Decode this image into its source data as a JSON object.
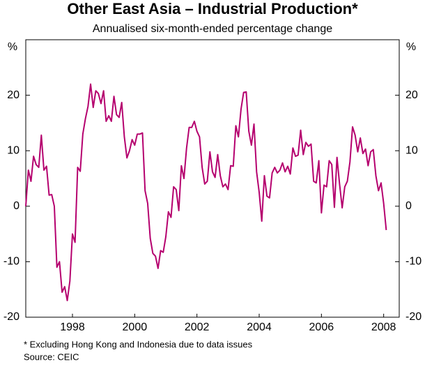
{
  "chart_data": {
    "type": "line",
    "title": "Other East Asia – Industrial Production*",
    "subtitle": "Annualised six-month-ended percentage change",
    "y_label": "%",
    "notes": [
      "*    Excluding Hong Kong and Indonesia due to data issues",
      "Source: CEIC"
    ],
    "xlim": [
      1997,
      2009
    ],
    "xticks": [
      {
        "value": 1998.5,
        "label": "1998"
      },
      {
        "value": 2000.5,
        "label": "2000"
      },
      {
        "value": 2002.5,
        "label": "2002"
      },
      {
        "value": 2004.5,
        "label": "2004"
      },
      {
        "value": 2006.5,
        "label": "2006"
      },
      {
        "value": 2008.5,
        "label": "2008"
      }
    ],
    "ylim": [
      -20,
      30
    ],
    "yticks": [
      -20,
      -10,
      0,
      10,
      20
    ],
    "grid": false,
    "x": [
      1997,
      1997.083,
      1997.167,
      1997.25,
      1997.333,
      1997.417,
      1997.5,
      1997.583,
      1997.667,
      1997.75,
      1997.833,
      1997.917,
      1998,
      1998.083,
      1998.167,
      1998.25,
      1998.333,
      1998.417,
      1998.5,
      1998.583,
      1998.667,
      1998.75,
      1998.833,
      1998.917,
      1999,
      1999.083,
      1999.167,
      1999.25,
      1999.333,
      1999.417,
      1999.5,
      1999.583,
      1999.667,
      1999.75,
      1999.833,
      1999.917,
      2000,
      2000.083,
      2000.167,
      2000.25,
      2000.333,
      2000.417,
      2000.5,
      2000.583,
      2000.667,
      2000.75,
      2000.833,
      2000.917,
      2001,
      2001.083,
      2001.167,
      2001.25,
      2001.333,
      2001.417,
      2001.5,
      2001.583,
      2001.667,
      2001.75,
      2001.833,
      2001.917,
      2002,
      2002.083,
      2002.167,
      2002.25,
      2002.333,
      2002.417,
      2002.5,
      2002.583,
      2002.667,
      2002.75,
      2002.833,
      2002.917,
      2003,
      2003.083,
      2003.167,
      2003.25,
      2003.333,
      2003.417,
      2003.5,
      2003.583,
      2003.667,
      2003.75,
      2003.833,
      2003.917,
      2004,
      2004.083,
      2004.167,
      2004.25,
      2004.333,
      2004.417,
      2004.5,
      2004.583,
      2004.667,
      2004.75,
      2004.833,
      2004.917,
      2005,
      2005.083,
      2005.167,
      2005.25,
      2005.333,
      2005.417,
      2005.5,
      2005.583,
      2005.667,
      2005.75,
      2005.833,
      2005.917,
      2006,
      2006.083,
      2006.167,
      2006.25,
      2006.333,
      2006.417,
      2006.5,
      2006.583,
      2006.667,
      2006.75,
      2006.833,
      2006.917,
      2007,
      2007.083,
      2007.167,
      2007.25,
      2007.333,
      2007.417,
      2007.5,
      2007.583,
      2007.667,
      2007.75,
      2007.833,
      2007.917,
      2008,
      2008.083,
      2008.167,
      2008.25,
      2008.333,
      2008.417,
      2008.5,
      2008.583
    ],
    "series": [
      {
        "name": "Industrial production",
        "color": "#b5006e",
        "values": [
          0,
          6.5,
          4.5,
          9,
          7.5,
          7,
          12.8,
          6.5,
          7.2,
          2,
          2.1,
          0,
          -11,
          -10,
          -15.5,
          -14.5,
          -17,
          -13.5,
          -5,
          -6.5,
          7,
          6.3,
          13,
          15.8,
          18,
          22,
          17.8,
          20.8,
          20.3,
          18.5,
          20.8,
          15.3,
          16.3,
          15.3,
          19.8,
          16.5,
          16,
          18.7,
          12.5,
          8.7,
          10,
          12,
          11,
          13,
          13,
          13.2,
          2.8,
          0.5,
          -5.8,
          -8.5,
          -9,
          -11.2,
          -8,
          -8.3,
          -5.5,
          -1,
          -2,
          3.5,
          3,
          -0.8,
          7.3,
          5,
          10.5,
          14.2,
          14.2,
          15.3,
          13.5,
          12.5,
          7,
          4,
          4.5,
          9.8,
          6.2,
          5.2,
          9.3,
          5.5,
          3.5,
          4,
          3,
          7.3,
          7.2,
          14.5,
          12.5,
          17.5,
          20.5,
          20.6,
          13.5,
          11,
          14.8,
          6.2,
          2.5,
          -2.7,
          5.5,
          1.8,
          1.5,
          6,
          7,
          6,
          6.5,
          7.8,
          6.2,
          7.2,
          5.8,
          10.5,
          9,
          9.2,
          13.7,
          9.3,
          11.5,
          10.8,
          11.2,
          4.5,
          4.2,
          8.2,
          -1.2,
          3.8,
          3.5,
          8.2,
          7.5,
          -0.2,
          8.8,
          4,
          -0.3,
          3.5,
          4.5,
          8,
          14.3,
          12.8,
          9.8,
          12.3,
          9.5,
          10.3,
          7.3,
          9.8,
          10.2,
          5.5,
          2.8,
          4.2,
          0.5,
          -4.3
        ]
      }
    ]
  }
}
